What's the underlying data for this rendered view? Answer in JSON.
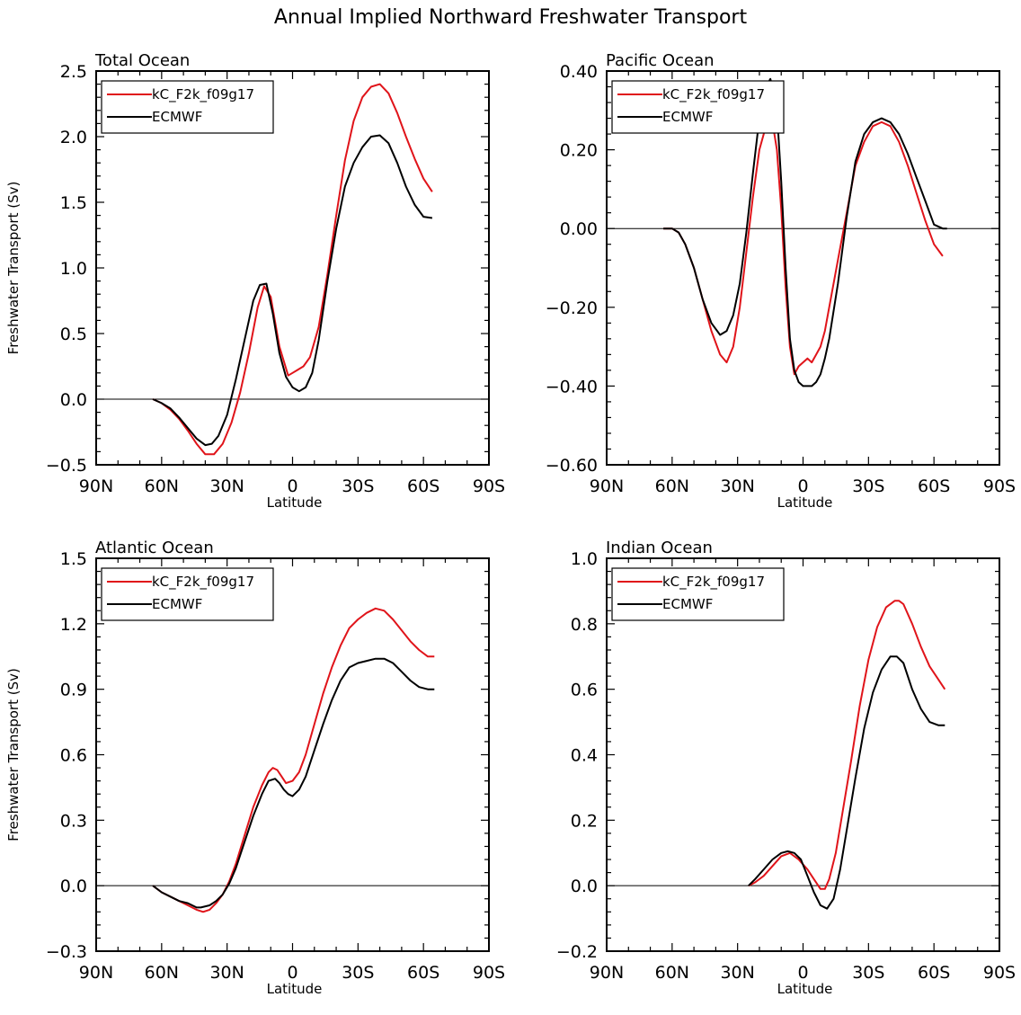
{
  "figure_title": "Annual Implied Northward Freshwater Transport",
  "colors": {
    "model": "#e0141a",
    "obs": "#000000",
    "axis": "#000000"
  },
  "chart_data": [
    {
      "type": "line",
      "title": "Total Ocean",
      "xlabel": "Latitude",
      "ylabel": "Freshwater Transport (Sv)",
      "xlim": [
        -90,
        90
      ],
      "ylim": [
        -0.5,
        2.5
      ],
      "xticks": [
        -90,
        -60,
        -30,
        0,
        30,
        60,
        90
      ],
      "xticklabels": [
        "90N",
        "60N",
        "30N",
        "0",
        "30S",
        "60S",
        "90S"
      ],
      "yticks": [
        -0.5,
        0.0,
        0.5,
        1.0,
        1.5,
        2.0,
        2.5
      ],
      "yticklabels": [
        "−0.5",
        "0.0",
        "0.5",
        "1.0",
        "1.5",
        "2.0",
        "2.5"
      ],
      "legend": [
        "kC_F2k_f09g17",
        "ECMWF"
      ],
      "series": [
        {
          "name": "kC_F2k_f09g17",
          "color": "model",
          "x": [
            -64,
            -60,
            -56,
            -52,
            -48,
            -44,
            -40,
            -36,
            -32,
            -28,
            -24,
            -20,
            -16,
            -13,
            -10,
            -6,
            -2,
            0,
            2,
            5,
            8,
            12,
            16,
            20,
            24,
            28,
            32,
            36,
            40,
            44,
            48,
            52,
            56,
            60,
            64
          ],
          "y": [
            0,
            -0.03,
            -0.08,
            -0.15,
            -0.24,
            -0.34,
            -0.42,
            -0.42,
            -0.34,
            -0.18,
            0.05,
            0.35,
            0.7,
            0.86,
            0.78,
            0.4,
            0.18,
            0.2,
            0.22,
            0.25,
            0.32,
            0.55,
            0.95,
            1.4,
            1.82,
            2.12,
            2.3,
            2.38,
            2.4,
            2.33,
            2.18,
            2.0,
            1.83,
            1.68,
            1.58
          ]
        },
        {
          "name": "ECMWF",
          "color": "obs",
          "x": [
            -64,
            -60,
            -56,
            -52,
            -48,
            -44,
            -40,
            -37,
            -34,
            -30,
            -26,
            -22,
            -18,
            -15,
            -12,
            -9,
            -6,
            -3,
            0,
            3,
            6,
            9,
            12,
            16,
            20,
            24,
            28,
            32,
            36,
            40,
            44,
            48,
            52,
            56,
            60,
            64
          ],
          "y": [
            0,
            -0.03,
            -0.07,
            -0.14,
            -0.22,
            -0.3,
            -0.35,
            -0.34,
            -0.28,
            -0.12,
            0.15,
            0.45,
            0.75,
            0.87,
            0.88,
            0.65,
            0.35,
            0.17,
            0.09,
            0.06,
            0.09,
            0.2,
            0.45,
            0.9,
            1.3,
            1.62,
            1.8,
            1.92,
            2.0,
            2.01,
            1.95,
            1.8,
            1.62,
            1.48,
            1.39,
            1.38
          ]
        }
      ]
    },
    {
      "type": "line",
      "title": "Pacific Ocean",
      "xlabel": "Latitude",
      "ylabel": "",
      "xlim": [
        -90,
        90
      ],
      "ylim": [
        -0.6,
        0.4
      ],
      "xticks": [
        -90,
        -60,
        -30,
        0,
        30,
        60,
        90
      ],
      "xticklabels": [
        "90N",
        "60N",
        "30N",
        "0",
        "30S",
        "60S",
        "90S"
      ],
      "yticks": [
        -0.6,
        -0.4,
        -0.2,
        0.0,
        0.2,
        0.4
      ],
      "yticklabels": [
        "−0.60",
        "−0.40",
        "−0.20",
        "0.00",
        "0.20",
        "0.40"
      ],
      "legend": [
        "kC_F2k_f09g17",
        "ECMWF"
      ],
      "series": [
        {
          "name": "kC_F2k_f09g17",
          "color": "model",
          "x": [
            -64,
            -60,
            -57,
            -54,
            -50,
            -46,
            -42,
            -38,
            -35,
            -32,
            -29,
            -26,
            -23,
            -20,
            -17,
            -14,
            -12,
            -10,
            -8,
            -6,
            -4,
            -2,
            0,
            2,
            4,
            6,
            8,
            10,
            12,
            16,
            20,
            24,
            28,
            32,
            36,
            40,
            44,
            48,
            52,
            56,
            60,
            64
          ],
          "y": [
            0,
            0,
            -0.01,
            -0.04,
            -0.1,
            -0.18,
            -0.26,
            -0.32,
            -0.34,
            -0.3,
            -0.2,
            -0.06,
            0.08,
            0.2,
            0.26,
            0.27,
            0.2,
            0.05,
            -0.15,
            -0.3,
            -0.37,
            -0.35,
            -0.34,
            -0.33,
            -0.34,
            -0.32,
            -0.3,
            -0.26,
            -0.2,
            -0.08,
            0.04,
            0.16,
            0.22,
            0.26,
            0.27,
            0.26,
            0.22,
            0.16,
            0.09,
            0.02,
            -0.04,
            -0.07
          ]
        },
        {
          "name": "ECMWF",
          "color": "obs",
          "x": [
            -64,
            -60,
            -57,
            -54,
            -50,
            -46,
            -42,
            -38,
            -35,
            -32,
            -29,
            -26,
            -23,
            -20,
            -18,
            -16,
            -15,
            -14,
            -13,
            -12,
            -10,
            -8,
            -6,
            -4,
            -2,
            0,
            2,
            4,
            6,
            8,
            10,
            12,
            16,
            20,
            24,
            28,
            32,
            36,
            40,
            44,
            48,
            52,
            56,
            60,
            64,
            66
          ],
          "y": [
            0,
            0,
            -0.01,
            -0.04,
            -0.1,
            -0.18,
            -0.24,
            -0.27,
            -0.26,
            -0.22,
            -0.14,
            -0.01,
            0.14,
            0.28,
            0.34,
            0.37,
            0.38,
            0.36,
            0.37,
            0.3,
            0.12,
            -0.1,
            -0.28,
            -0.36,
            -0.39,
            -0.4,
            -0.4,
            -0.4,
            -0.39,
            -0.37,
            -0.33,
            -0.28,
            -0.14,
            0.03,
            0.17,
            0.24,
            0.27,
            0.28,
            0.27,
            0.24,
            0.19,
            0.13,
            0.07,
            0.01,
            0.0,
            0.0
          ]
        }
      ]
    },
    {
      "type": "line",
      "title": "Atlantic Ocean",
      "xlabel": "Latitude",
      "ylabel": "Freshwater Transport (Sv)",
      "xlim": [
        -90,
        90
      ],
      "ylim": [
        -0.3,
        1.5
      ],
      "xticks": [
        -90,
        -60,
        -30,
        0,
        30,
        60,
        90
      ],
      "xticklabels": [
        "90N",
        "60N",
        "30N",
        "0",
        "30S",
        "60S",
        "90S"
      ],
      "yticks": [
        -0.3,
        0.0,
        0.3,
        0.6,
        0.9,
        1.2,
        1.5
      ],
      "yticklabels": [
        "−0.3",
        "0.0",
        "0.3",
        "0.6",
        "0.9",
        "1.2",
        "1.5"
      ],
      "legend": [
        "kC_F2k_f09g17",
        "ECMWF"
      ],
      "series": [
        {
          "name": "kC_F2k_f09g17",
          "color": "model",
          "x": [
            -64,
            -60,
            -56,
            -52,
            -48,
            -44,
            -41,
            -38,
            -35,
            -32,
            -29,
            -26,
            -22,
            -18,
            -14,
            -11,
            -9,
            -7,
            -5,
            -3,
            0,
            3,
            6,
            10,
            14,
            18,
            22,
            26,
            30,
            34,
            38,
            42,
            46,
            50,
            54,
            58,
            62,
            65
          ],
          "y": [
            0,
            -0.03,
            -0.05,
            -0.07,
            -0.09,
            -0.11,
            -0.12,
            -0.11,
            -0.08,
            -0.04,
            0.02,
            0.1,
            0.23,
            0.36,
            0.46,
            0.52,
            0.54,
            0.53,
            0.5,
            0.47,
            0.48,
            0.52,
            0.6,
            0.74,
            0.88,
            1.0,
            1.1,
            1.18,
            1.22,
            1.25,
            1.27,
            1.26,
            1.22,
            1.17,
            1.12,
            1.08,
            1.05,
            1.05
          ]
        },
        {
          "name": "ECMWF",
          "color": "obs",
          "x": [
            -64,
            -60,
            -56,
            -52,
            -48,
            -44,
            -42,
            -38,
            -35,
            -32,
            -29,
            -26,
            -22,
            -18,
            -14,
            -11,
            -8,
            -6,
            -4,
            -2,
            0,
            3,
            6,
            10,
            14,
            18,
            22,
            26,
            30,
            34,
            38,
            42,
            46,
            50,
            54,
            58,
            62,
            65
          ],
          "y": [
            0,
            -0.03,
            -0.05,
            -0.07,
            -0.08,
            -0.1,
            -0.1,
            -0.09,
            -0.07,
            -0.04,
            0.01,
            0.08,
            0.2,
            0.32,
            0.42,
            0.48,
            0.49,
            0.47,
            0.44,
            0.42,
            0.41,
            0.44,
            0.5,
            0.62,
            0.74,
            0.85,
            0.94,
            1.0,
            1.02,
            1.03,
            1.04,
            1.04,
            1.02,
            0.98,
            0.94,
            0.91,
            0.9,
            0.9
          ]
        }
      ]
    },
    {
      "type": "line",
      "title": "Indian Ocean",
      "xlabel": "Latitude",
      "ylabel": "",
      "xlim": [
        -90,
        90
      ],
      "ylim": [
        -0.2,
        1.0
      ],
      "xticks": [
        -90,
        -60,
        -30,
        0,
        30,
        60,
        90
      ],
      "xticklabels": [
        "90N",
        "60N",
        "30N",
        "0",
        "30S",
        "60S",
        "90S"
      ],
      "yticks": [
        -0.2,
        0.0,
        0.2,
        0.4,
        0.6,
        0.8,
        1.0
      ],
      "yticklabels": [
        "−0.2",
        "0.0",
        "0.2",
        "0.4",
        "0.6",
        "0.8",
        "1.0"
      ],
      "legend": [
        "kC_F2k_f09g17",
        "ECMWF"
      ],
      "series": [
        {
          "name": "kC_F2k_f09g17",
          "color": "model",
          "x": [
            -25,
            -22,
            -18,
            -14,
            -10,
            -6,
            -2,
            2,
            5,
            8,
            10,
            12,
            15,
            18,
            22,
            26,
            30,
            34,
            38,
            42,
            44,
            46,
            50,
            54,
            58,
            62,
            65
          ],
          "y": [
            0,
            0.01,
            0.03,
            0.06,
            0.09,
            0.1,
            0.08,
            0.05,
            0.02,
            -0.01,
            -0.01,
            0.02,
            0.1,
            0.22,
            0.38,
            0.55,
            0.69,
            0.79,
            0.85,
            0.87,
            0.87,
            0.86,
            0.8,
            0.73,
            0.67,
            0.63,
            0.6
          ]
        },
        {
          "name": "ECMWF",
          "color": "obs",
          "x": [
            -25,
            -22,
            -18,
            -14,
            -10,
            -7,
            -4,
            -1,
            2,
            5,
            8,
            11,
            14,
            17,
            20,
            24,
            28,
            32,
            36,
            40,
            43,
            46,
            50,
            54,
            58,
            62,
            65
          ],
          "y": [
            0,
            0.02,
            0.05,
            0.08,
            0.1,
            0.105,
            0.1,
            0.08,
            0.03,
            -0.02,
            -0.06,
            -0.07,
            -0.04,
            0.05,
            0.17,
            0.33,
            0.48,
            0.59,
            0.66,
            0.7,
            0.7,
            0.68,
            0.6,
            0.54,
            0.5,
            0.49,
            0.49
          ]
        }
      ]
    }
  ]
}
